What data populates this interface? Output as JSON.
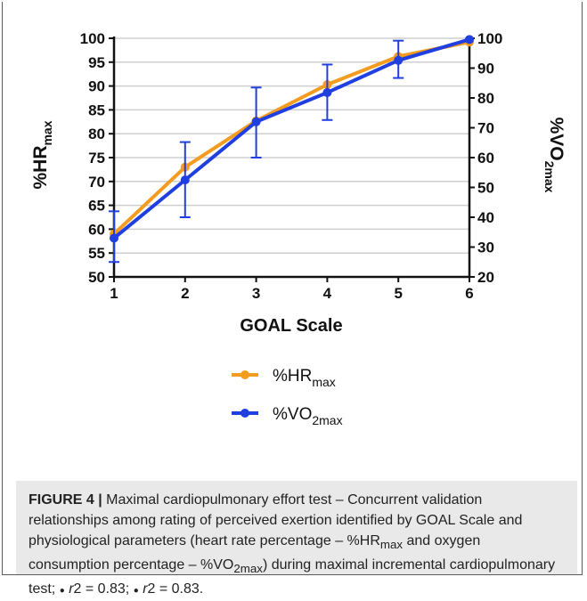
{
  "figure": {
    "caption_label": "FIGURE 4 |",
    "caption_text": "Maximal cardiopulmonary effort test – Concurrent validation relationships among rating of perceived exertion identified by GOAL Scale and physiological parameters (heart rate percentage – %HR",
    "caption_sub1": "max",
    "caption_text2": " and oxygen consumption percentage – %VO",
    "caption_sub2": "2max",
    "caption_text3": ") during maximal incremental cardiopulmonary test; ",
    "caption_bullet1": "●",
    "caption_r1_italic": "r",
    "caption_r1_rest": "2 = 0.83; ",
    "caption_bullet2": "●",
    "caption_r2_italic": "r",
    "caption_r2_rest": "2 = 0.83."
  },
  "chart_data": {
    "type": "line",
    "xlabel": "GOAL Scale",
    "ylabel_left": "%HR",
    "ylabel_left_sub": "max",
    "ylabel_right": "%VO",
    "ylabel_right_sub": "2max",
    "x": [
      1,
      2,
      3,
      4,
      5,
      6
    ],
    "xlim": [
      1,
      6
    ],
    "ylim_left": [
      50,
      100
    ],
    "ylim_right": [
      20,
      100
    ],
    "yticks_left": [
      50,
      55,
      60,
      65,
      70,
      75,
      80,
      85,
      90,
      95,
      100
    ],
    "yticks_right": [
      20,
      30,
      40,
      50,
      60,
      70,
      80,
      90,
      100
    ],
    "grid": true,
    "legend_placement": "bottom-center",
    "series": [
      {
        "name": "%HR",
        "name_sub": "max",
        "axis": "left",
        "color": "#f39c1f",
        "values": [
          59,
          73,
          82.7,
          90.3,
          96.2,
          99.2
        ]
      },
      {
        "name": "%VO",
        "name_sub": "2max",
        "axis": "right",
        "color": "#1f3fe0",
        "values": [
          33,
          52.5,
          72,
          81.8,
          92.6,
          99.6
        ],
        "error_low": [
          25,
          40,
          60,
          72.6,
          86.7,
          null
        ],
        "error_high": [
          42,
          65.2,
          83.5,
          91.2,
          99.2,
          null
        ]
      }
    ]
  }
}
